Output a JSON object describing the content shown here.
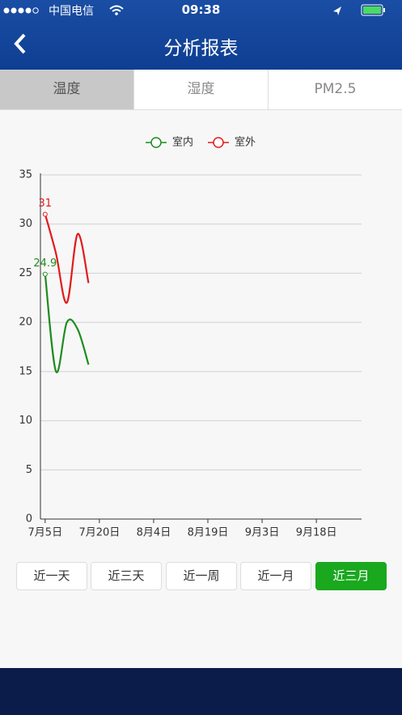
{
  "status_bar": {
    "carrier": "中国电信",
    "time": "09:38"
  },
  "nav": {
    "title": "分析报表"
  },
  "tabs": [
    "温度",
    "湿度",
    "PM2.5"
  ],
  "chart_data": {
    "type": "line",
    "x": [
      186,
      189,
      192,
      195,
      198
    ],
    "series": [
      {
        "name": "室内",
        "color": "#1e8c1e",
        "values": [
          24.9,
          15,
          20,
          19.3,
          15.7
        ]
      },
      {
        "name": "室外",
        "color": "#e31a1c",
        "values": [
          31,
          27,
          22,
          29,
          24
        ]
      }
    ],
    "xlim": [
      184.7,
      273.5
    ],
    "xticks": [
      {
        "value": 186,
        "label": "7月5日"
      },
      {
        "value": 201,
        "label": "7月20日"
      },
      {
        "value": 216,
        "label": "8月4日"
      },
      {
        "value": 231,
        "label": "8月19日"
      },
      {
        "value": 246,
        "label": "9月3日"
      },
      {
        "value": 261,
        "label": "9月18日"
      }
    ],
    "ylim": [
      0,
      35
    ],
    "yticks": [
      0,
      5,
      10,
      15,
      20,
      25,
      30,
      35
    ],
    "grid": true
  },
  "buttons": [
    "近一天",
    "近三天",
    "近一周",
    "近一月",
    "近三月"
  ]
}
